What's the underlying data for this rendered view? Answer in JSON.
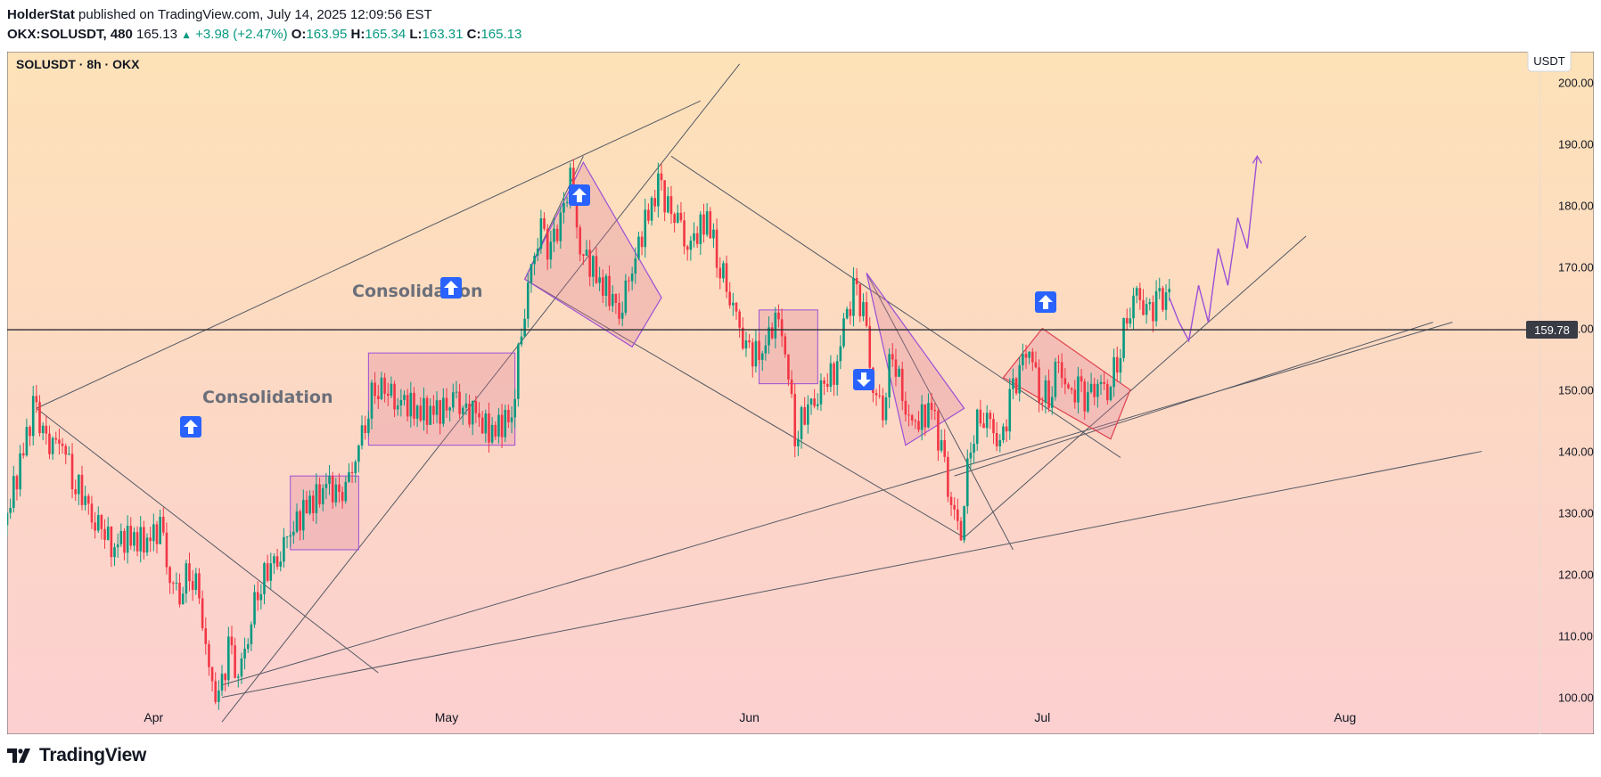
{
  "header": {
    "author": "HolderStat",
    "published_text": "published on TradingView.com, July 14, 2025 12:09:56 EST",
    "symbol_full": "OKX:SOLUSDT, 480",
    "last": "165.13",
    "change": "+3.98 (+2.47%)",
    "o_label": "O:",
    "o_val": "163.95",
    "h_label": "H:",
    "h_val": "165.34",
    "l_label": "L:",
    "l_val": "163.31",
    "c_label": "C:",
    "c_val": "165.13"
  },
  "chart_title": "SOLUSDT · 8h · OKX",
  "currency_button": "USDT",
  "price_line_label": "159.78",
  "annotations": {
    "consolidation_1": "Consolidation",
    "consolidation_2": "Consolidation"
  },
  "footer": {
    "brand": "TradingView"
  },
  "colors": {
    "up": "#089981",
    "down": "#f23645",
    "arrow": "#2962ff",
    "path": "#9c4fd6",
    "bg_top": "#fde2b8",
    "bg_bottom": "#fccfd0"
  },
  "chart_data": {
    "type": "line",
    "title": "SOLUSDT · 8h · OKX",
    "ylim": [
      94,
      205
    ],
    "y_ticks": [
      100,
      110,
      120,
      130,
      140,
      150,
      160,
      170,
      180,
      190,
      200
    ],
    "y_tick_labels": [
      "100.00",
      "110.00",
      "120.00",
      "130.00",
      "140.00",
      "150.00",
      "160.00",
      "170.00",
      "180.00",
      "190.00",
      "200.00"
    ],
    "x_range": [
      "2025-03-17",
      "2025-08-21"
    ],
    "x_ticks": [
      {
        "date": "2025-04-01",
        "label": "Apr"
      },
      {
        "date": "2025-05-01",
        "label": "May"
      },
      {
        "date": "2025-06-01",
        "label": "Jun"
      },
      {
        "date": "2025-07-01",
        "label": "Jul"
      },
      {
        "date": "2025-08-01",
        "label": "Aug"
      }
    ],
    "horizontal_level": 159.78,
    "series": [
      {
        "values": [
          [
            "2025-03-17",
            128
          ],
          [
            "2025-03-19",
            140
          ],
          [
            "2025-03-20",
            147
          ],
          [
            "2025-03-22",
            140
          ],
          [
            "2025-03-23",
            142
          ],
          [
            "2025-03-24",
            136
          ],
          [
            "2025-03-26",
            130
          ],
          [
            "2025-03-28",
            125
          ],
          [
            "2025-03-30",
            126
          ],
          [
            "2025-04-01",
            125
          ],
          [
            "2025-04-02",
            128
          ],
          [
            "2025-04-03",
            119
          ],
          [
            "2025-04-04",
            117
          ],
          [
            "2025-04-05",
            121
          ],
          [
            "2025-04-06",
            117
          ],
          [
            "2025-04-07",
            104
          ],
          [
            "2025-04-08",
            99
          ],
          [
            "2025-04-09",
            108
          ],
          [
            "2025-04-10",
            103
          ],
          [
            "2025-04-11",
            110
          ],
          [
            "2025-04-12",
            118
          ],
          [
            "2025-04-14",
            123
          ],
          [
            "2025-04-15",
            126
          ],
          [
            "2025-04-17",
            131
          ],
          [
            "2025-04-19",
            134
          ],
          [
            "2025-04-21",
            133
          ],
          [
            "2025-04-22",
            139
          ],
          [
            "2025-04-23",
            145
          ],
          [
            "2025-04-24",
            151
          ],
          [
            "2025-04-26",
            149
          ],
          [
            "2025-04-28",
            147
          ],
          [
            "2025-04-30",
            146
          ],
          [
            "2025-05-02",
            148
          ],
          [
            "2025-05-04",
            146
          ],
          [
            "2025-05-06",
            143
          ],
          [
            "2025-05-08",
            146
          ],
          [
            "2025-05-09",
            160
          ],
          [
            "2025-05-10",
            170
          ],
          [
            "2025-05-11",
            176
          ],
          [
            "2025-05-12",
            172
          ],
          [
            "2025-05-14",
            184
          ],
          [
            "2025-05-15",
            173
          ],
          [
            "2025-05-17",
            168
          ],
          [
            "2025-05-19",
            163
          ],
          [
            "2025-05-20",
            168
          ],
          [
            "2025-05-22",
            179
          ],
          [
            "2025-05-23",
            183
          ],
          [
            "2025-05-25",
            177
          ],
          [
            "2025-05-26",
            173
          ],
          [
            "2025-05-28",
            178
          ],
          [
            "2025-05-29",
            172
          ],
          [
            "2025-05-30",
            167
          ],
          [
            "2025-05-31",
            162
          ],
          [
            "2025-06-01",
            156
          ],
          [
            "2025-06-03",
            156
          ],
          [
            "2025-06-04",
            162
          ],
          [
            "2025-06-05",
            157
          ],
          [
            "2025-06-06",
            143
          ],
          [
            "2025-06-08",
            149
          ],
          [
            "2025-06-10",
            153
          ],
          [
            "2025-06-11",
            160
          ],
          [
            "2025-06-12",
            166
          ],
          [
            "2025-06-13",
            163
          ],
          [
            "2025-06-14",
            150
          ],
          [
            "2025-06-15",
            147
          ],
          [
            "2025-06-16",
            157
          ],
          [
            "2025-06-17",
            149
          ],
          [
            "2025-06-18",
            144
          ],
          [
            "2025-06-20",
            147
          ],
          [
            "2025-06-21",
            140
          ],
          [
            "2025-06-22",
            131
          ],
          [
            "2025-06-23",
            127
          ],
          [
            "2025-06-24",
            142
          ],
          [
            "2025-06-25",
            146
          ],
          [
            "2025-06-26",
            145
          ],
          [
            "2025-06-27",
            140
          ],
          [
            "2025-06-28",
            148
          ],
          [
            "2025-06-29",
            153
          ],
          [
            "2025-06-30",
            157
          ],
          [
            "2025-07-01",
            150
          ],
          [
            "2025-07-02",
            149
          ],
          [
            "2025-07-03",
            155
          ],
          [
            "2025-07-04",
            149
          ],
          [
            "2025-07-05",
            150
          ],
          [
            "2025-07-06",
            148
          ],
          [
            "2025-07-07",
            151
          ],
          [
            "2025-07-08",
            150
          ],
          [
            "2025-07-09",
            155
          ],
          [
            "2025-07-10",
            162
          ],
          [
            "2025-07-11",
            166
          ],
          [
            "2025-07-12",
            162
          ],
          [
            "2025-07-13",
            164
          ],
          [
            "2025-07-14",
            165.13
          ]
        ]
      },
      {
        "values": [
          [
            "2025-07-14",
            165
          ],
          [
            "2025-07-15",
            161
          ],
          [
            "2025-07-16",
            158
          ],
          [
            "2025-07-17",
            167
          ],
          [
            "2025-07-18",
            161
          ],
          [
            "2025-07-19",
            173
          ],
          [
            "2025-07-20",
            167
          ],
          [
            "2025-07-21",
            178
          ],
          [
            "2025-07-22",
            173
          ],
          [
            "2025-07-23",
            188
          ]
        ]
      }
    ]
  }
}
